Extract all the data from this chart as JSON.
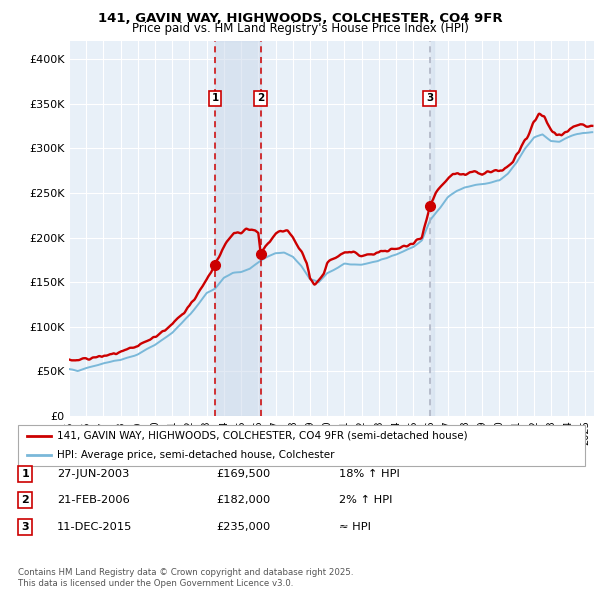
{
  "title_line1": "141, GAVIN WAY, HIGHWOODS, COLCHESTER, CO4 9FR",
  "title_line2": "Price paid vs. HM Land Registry's House Price Index (HPI)",
  "ylabel_ticks": [
    "£0",
    "£50K",
    "£100K",
    "£150K",
    "£200K",
    "£250K",
    "£300K",
    "£350K",
    "£400K"
  ],
  "ytick_values": [
    0,
    50000,
    100000,
    150000,
    200000,
    250000,
    300000,
    350000,
    400000
  ],
  "ylim": [
    0,
    420000
  ],
  "xlim_start": 1995.0,
  "xlim_end": 2025.5,
  "transaction1": {
    "date": 2003.49,
    "price": 169500,
    "label": "1",
    "note": "27-JUN-2003",
    "price_str": "£169,500",
    "hpi_note": "18% ↑ HPI"
  },
  "transaction2": {
    "date": 2006.13,
    "price": 182000,
    "label": "2",
    "note": "21-FEB-2006",
    "price_str": "£182,000",
    "hpi_note": "2% ↑ HPI"
  },
  "transaction3": {
    "date": 2015.95,
    "price": 235000,
    "label": "3",
    "note": "11-DEC-2015",
    "price_str": "£235,000",
    "hpi_note": "≈ HPI"
  },
  "legend_line1": "141, GAVIN WAY, HIGHWOODS, COLCHESTER, CO4 9FR (semi-detached house)",
  "legend_line2": "HPI: Average price, semi-detached house, Colchester",
  "footnote": "Contains HM Land Registry data © Crown copyright and database right 2025.\nThis data is licensed under the Open Government Licence v3.0.",
  "hpi_color": "#7ab8d9",
  "price_color": "#cc0000",
  "fig_bg": "#ffffff",
  "plot_bg": "#e8f0f8",
  "grid_color": "#ffffff",
  "shaded_color": "#ccdaeb",
  "vline_red": "#cc0000",
  "vline_gray": "#aab0c0"
}
